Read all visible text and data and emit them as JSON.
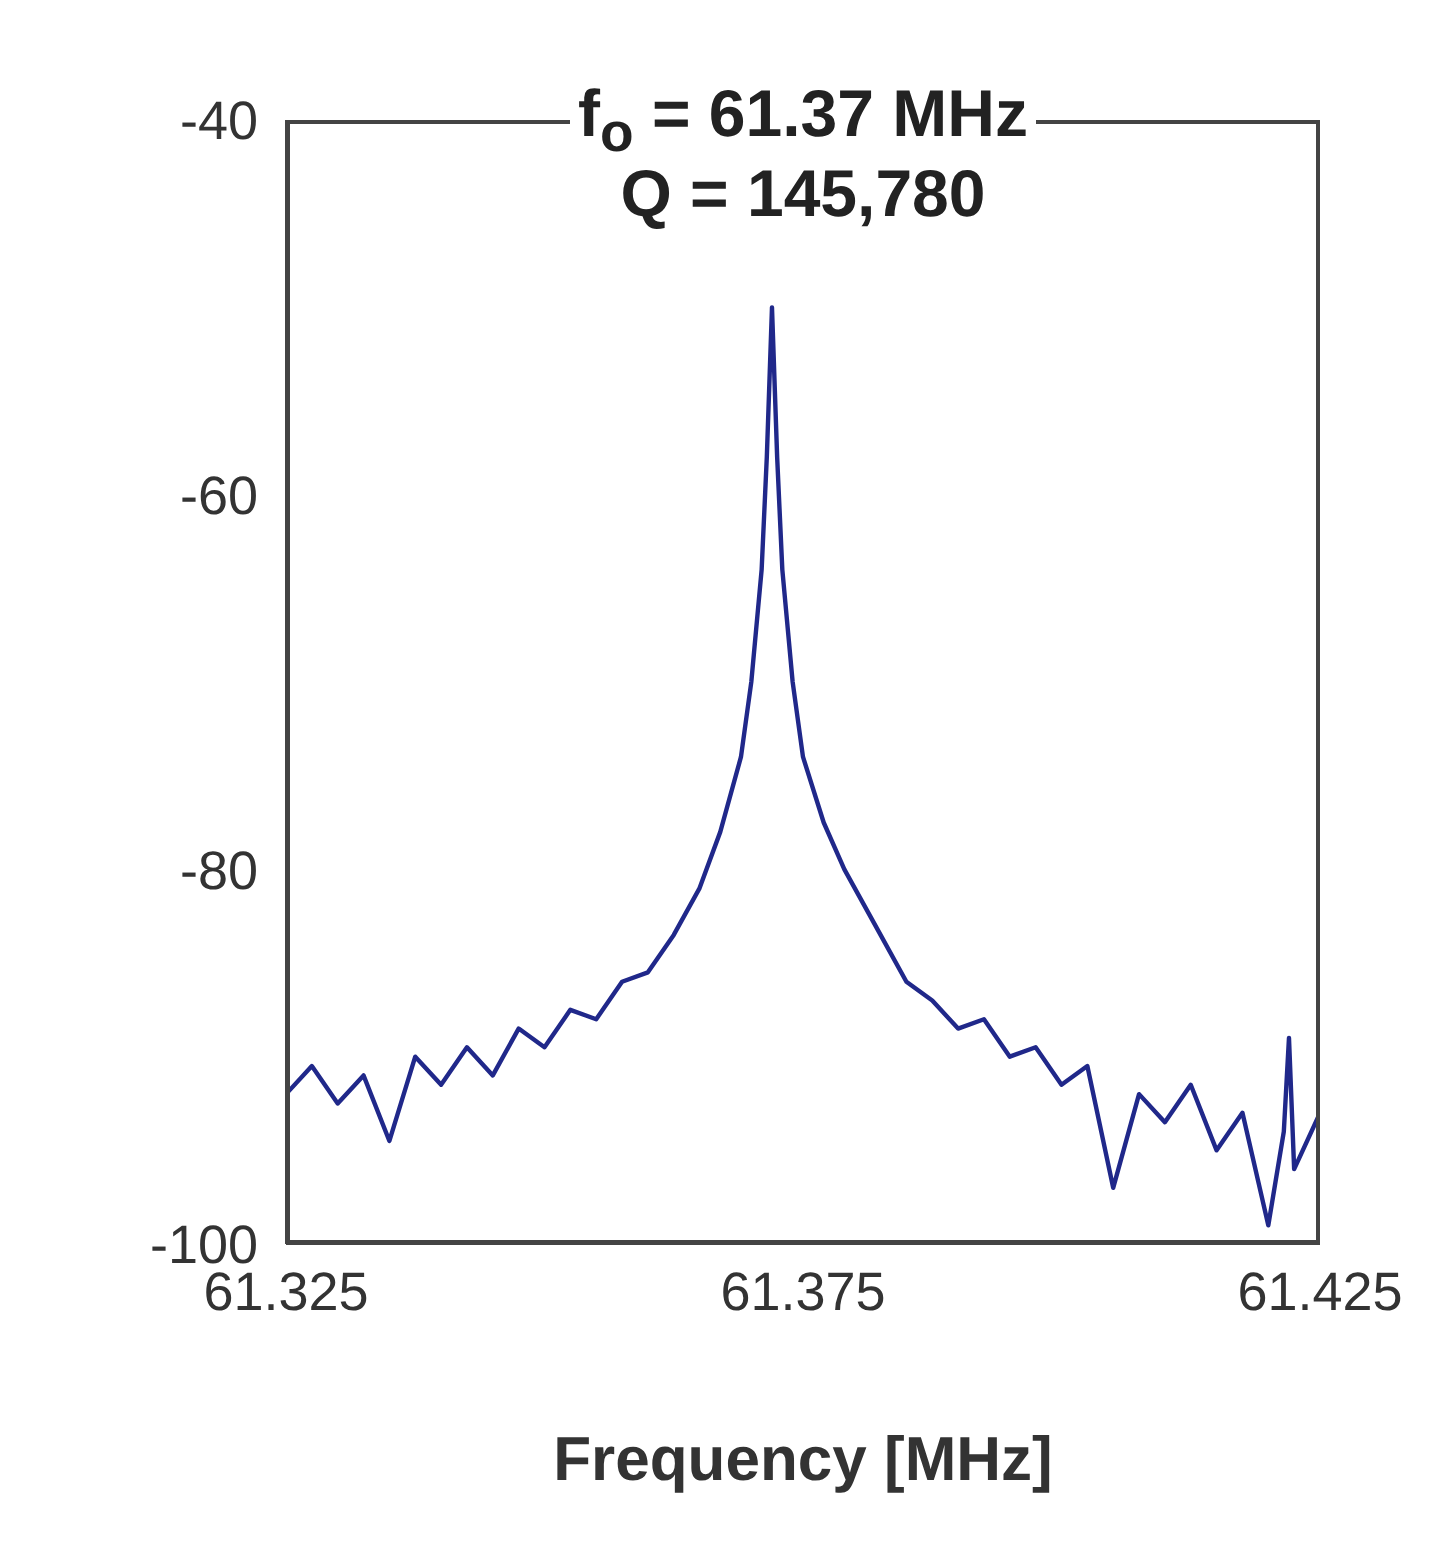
{
  "chart_data": {
    "type": "line",
    "xlabel": "Frequency [MHz]",
    "annotations": [
      "f$_{o}$ = 61.37 MHz",
      "Q = 145,780"
    ],
    "x": [
      61.325,
      61.3275,
      61.33,
      61.3325,
      61.335,
      61.3375,
      61.34,
      61.3425,
      61.345,
      61.3475,
      61.35,
      61.3525,
      61.355,
      61.3575,
      61.36,
      61.3625,
      61.365,
      61.367,
      61.369,
      61.37,
      61.371,
      61.3715,
      61.372,
      61.3725,
      61.373,
      61.374,
      61.375,
      61.377,
      61.379,
      61.3825,
      61.385,
      61.3875,
      61.39,
      61.3925,
      61.395,
      61.3975,
      61.4,
      61.4025,
      61.405,
      61.4075,
      61.41,
      61.4125,
      61.415,
      61.4175,
      61.42,
      61.4215,
      61.422,
      61.4225,
      61.425
    ],
    "series": [
      {
        "color": "#20288a",
        "values": [
          -92,
          -90.5,
          -92.5,
          -91,
          -94.5,
          -90,
          -91.5,
          -89.5,
          -91,
          -88.5,
          -89.5,
          -87.5,
          -88,
          -86,
          -85.5,
          -83.5,
          -81,
          -78,
          -74,
          -70,
          -64,
          -58,
          -50,
          -58,
          -64,
          -70,
          -74,
          -77.5,
          -80,
          -83.5,
          -86,
          -87,
          -88.5,
          -88,
          -90,
          -89.5,
          -91.5,
          -90.5,
          -97,
          -92,
          -93.5,
          -91.5,
          -95,
          -93,
          -99,
          -94,
          -89,
          -96,
          -93
        ]
      }
    ],
    "xlim": [
      61.325,
      61.425
    ],
    "xticks": [
      61.325,
      61.375,
      61.425
    ],
    "ylim": [
      -100,
      -40
    ],
    "yticks": [
      -100,
      -80,
      -60,
      -40
    ],
    "grid": false,
    "legend": false,
    "marker": "none",
    "line_style": "solid"
  }
}
